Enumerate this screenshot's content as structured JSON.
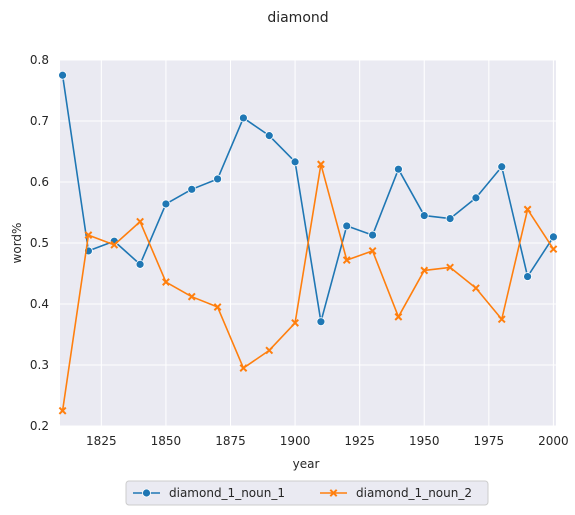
{
  "chart_data": {
    "type": "line",
    "title": "diamond",
    "xlabel": "year",
    "ylabel": "word%",
    "xlim": [
      1809,
      2001
    ],
    "ylim": [
      0.2,
      0.8
    ],
    "x_ticks": [
      1825,
      1850,
      1875,
      1900,
      1925,
      1950,
      1975,
      2000
    ],
    "y_ticks": [
      0.2,
      0.3,
      0.4,
      0.5,
      0.6,
      0.7,
      0.8
    ],
    "grid": true,
    "legend_position": "bottom-center",
    "x": [
      1810,
      1820,
      1830,
      1840,
      1850,
      1860,
      1870,
      1880,
      1890,
      1900,
      1910,
      1920,
      1930,
      1940,
      1950,
      1960,
      1970,
      1980,
      1990,
      2000
    ],
    "series": [
      {
        "name": "diamond_1_noun_1",
        "color": "#1f77b4",
        "marker": "circle",
        "values": [
          0.775,
          0.487,
          0.503,
          0.465,
          0.564,
          0.588,
          0.605,
          0.705,
          0.676,
          0.633,
          0.371,
          0.528,
          0.513,
          0.621,
          0.545,
          0.54,
          0.574,
          0.625,
          0.445,
          0.51
        ]
      },
      {
        "name": "diamond_1_noun_2",
        "color": "#ff7f0e",
        "marker": "x",
        "values": [
          0.225,
          0.513,
          0.497,
          0.535,
          0.436,
          0.412,
          0.395,
          0.295,
          0.324,
          0.369,
          0.629,
          0.472,
          0.487,
          0.379,
          0.455,
          0.46,
          0.426,
          0.375,
          0.555,
          0.49
        ]
      }
    ]
  }
}
